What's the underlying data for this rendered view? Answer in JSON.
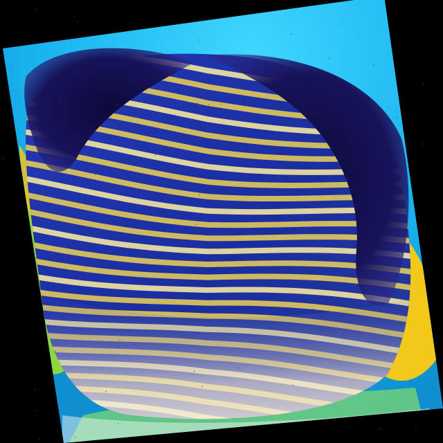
{
  "image": {
    "subject": "emperor-angelfish",
    "colors": {
      "background": "#000000",
      "water": "#19b6f0",
      "water_light": "#39d4ff",
      "body_blue": "#1b2fa6",
      "body_deep": "#10166e",
      "stripe_yellow": "#e2c95c",
      "stripe_pale": "#f3e6a0",
      "dark_mask": "#14104a",
      "fin_yellow": "#f2c81a",
      "fin_green": "#7fd23a",
      "belly_cream": "#f4ead6"
    }
  }
}
